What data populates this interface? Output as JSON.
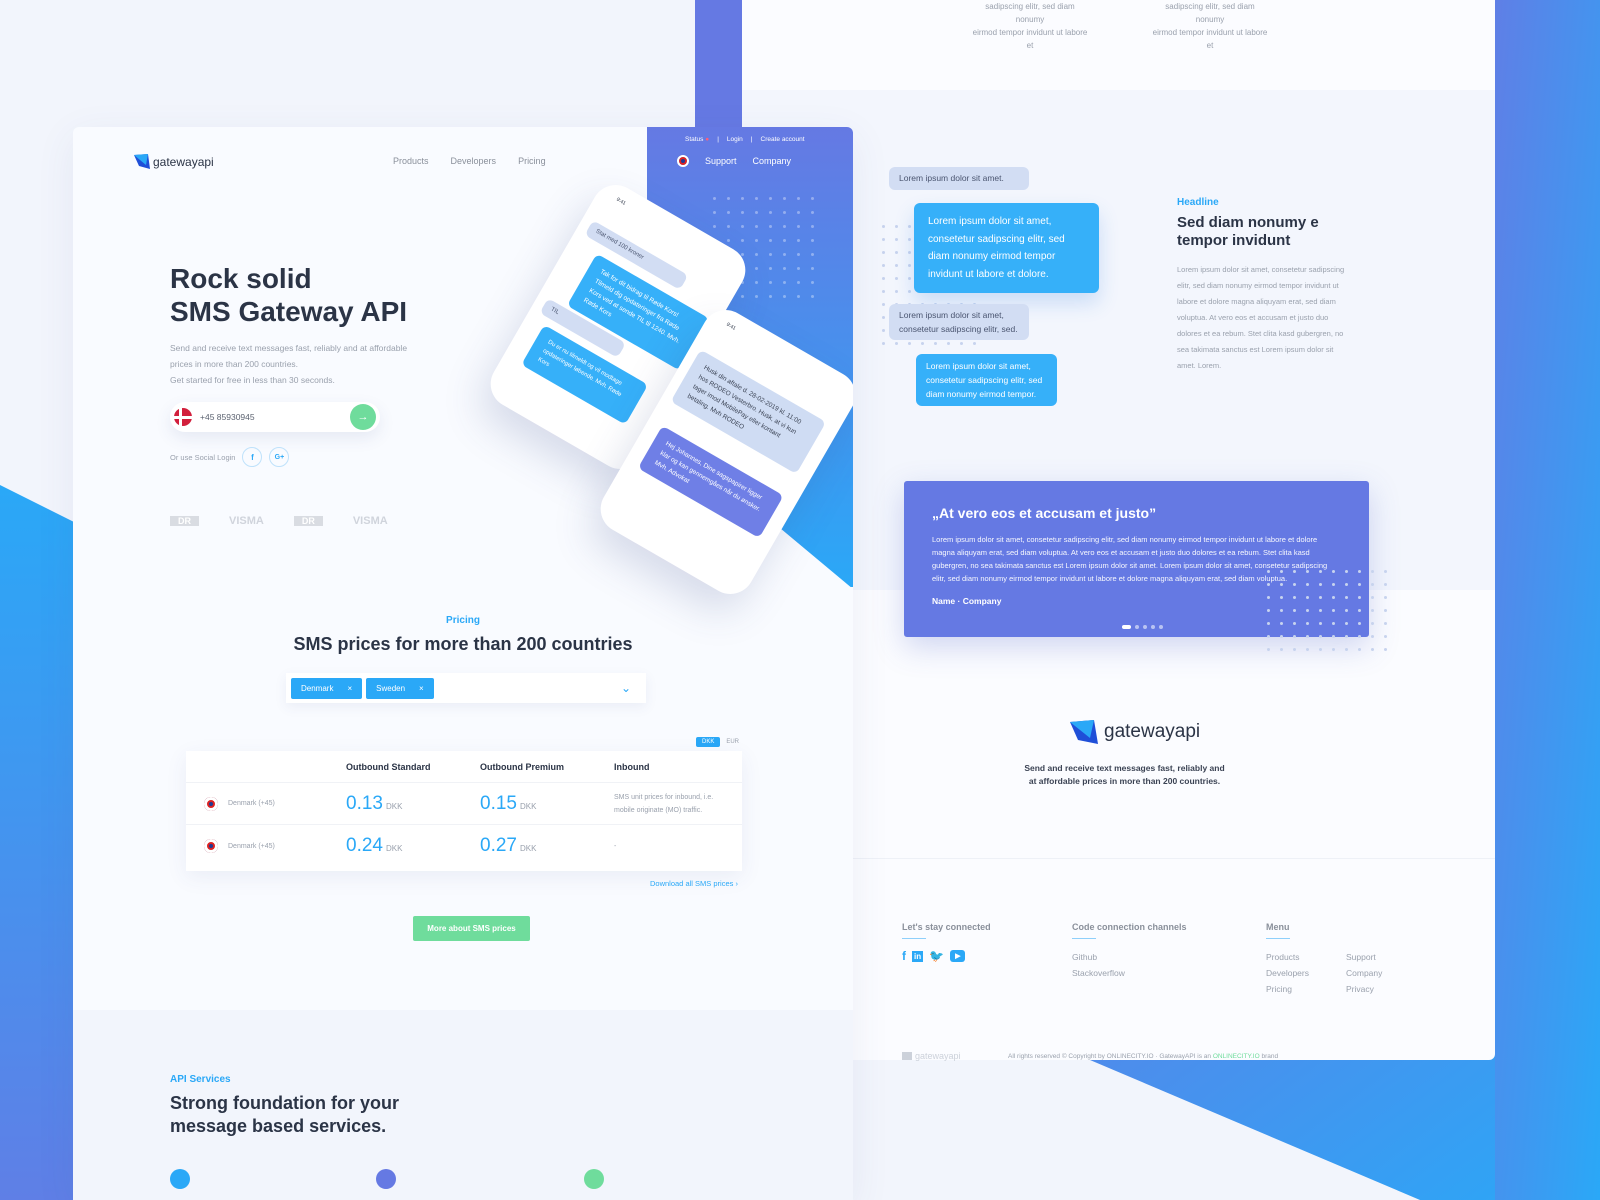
{
  "left": {
    "logo": "gatewayapi",
    "nav": [
      "Products",
      "Developers",
      "Pricing"
    ],
    "topbar": {
      "status": "Status",
      "login": "Login",
      "create": "Create account",
      "support": "Support",
      "company": "Company"
    },
    "hero": {
      "title1": "Rock solid",
      "title2": "SMS Gateway API",
      "desc1": "Send and receive text messages fast, reliably and at affordable",
      "desc2": "prices in more than 200 countries.",
      "desc3": "Get started for free in less than 30 seconds.",
      "phone_value": "+45 85930945",
      "social": "Or use Social Login",
      "fb": "f",
      "gplus": "G+"
    },
    "clients": [
      "DR",
      "VISMA",
      "DR",
      "VISMA"
    ],
    "phones": {
      "time": "9:41",
      "msg1": "Stat med 100 kroner",
      "msg2": "Tak for dit bidrag til Røde Kors! Tilmeld dig opdateringer fra Røde Kors ved at sende TIL til 1240. Mvh. Røde Kors",
      "msg3": "TIL",
      "msg4": "Du er nu tilmeldt og vil modtage opdateringer løbende. Mvh. Røde Kors",
      "msg5": "Husk din aftale d. 28-02-2019 kl. 11:00 hos RODEO Vesterbro. Husk, at vi kun tager imod MobilePay eller kontant betaling. Mvh RODEO",
      "msg6": "Hej Johannes, Dine sagspapirer ligger klar og kan gennemgåes når du ønsker. Mvh. Advokat"
    },
    "pricing": {
      "eyebrow": "Pricing",
      "title": "SMS prices for more than 200 countries",
      "tags": [
        "Denmark",
        "Sweden"
      ],
      "currencies": [
        "DKK",
        "EUR"
      ],
      "selected_currency": "DKK",
      "headers": [
        "Outbound Standard",
        "Outbound Premium",
        "Inbound"
      ],
      "rows": [
        {
          "country": "Denmark (+45)",
          "std": "0.13",
          "prem": "0.15",
          "unit": "DKK",
          "inbound": "SMS unit prices for inbound, i.e. mobile originate (MO) traffic."
        },
        {
          "country": "Denmark (+45)",
          "std": "0.24",
          "prem": "0.27",
          "unit": "DKK",
          "inbound": "-"
        }
      ],
      "download": "Download all SMS prices",
      "more": "More about SMS prices"
    },
    "api": {
      "eyebrow": "API Services",
      "title1": "Strong foundation for your",
      "title2": "message based services."
    }
  },
  "right": {
    "top_text": [
      "sadipscing elitr, sed diam nonumy",
      "eirmod tempor invidunt ut labore et"
    ],
    "bubbles": [
      "Lorem ipsum dolor sit amet.",
      "Lorem ipsum dolor sit amet, consetetur sadipscing elitr, sed diam nonumy eirmod tempor invidunt ut labore et dolore.",
      "Lorem ipsum dolor sit amet, consetetur sadipscing elitr, sed.",
      "Lorem ipsum dolor sit amet, consetetur sadipscing elitr, sed diam nonumy eirmod tempor."
    ],
    "feature": {
      "eyebrow": "Headline",
      "title": "Sed diam nonumy e tempor invidunt",
      "body": "Lorem ipsum dolor sit amet, consetetur sadipscing elitr, sed diam nonumy eirmod tempor invidunt ut labore et dolore magna aliquyam erat, sed diam voluptua. At vero eos et accusam et justo duo dolores et ea rebum. Stet clita kasd gubergren, no sea takimata sanctus est Lorem ipsum dolor sit amet. Lorem."
    },
    "quote": {
      "title": "„At vero eos et accusam et justo”",
      "body": "Lorem ipsum dolor sit amet, consetetur sadipscing elitr, sed diam nonumy eirmod tempor invidunt ut labore et dolore magna aliquyam erat, sed diam voluptua. At vero eos et accusam et justo duo dolores et ea rebum. Stet clita kasd gubergren, no sea takimata sanctus est Lorem ipsum dolor sit amet. Lorem ipsum dolor sit amet, consetetur sadipscing elitr, sed diam nonumy eirmod tempor invidunt ut labore et dolore magna aliquyam erat, sed diam voluptua.",
      "author": "Name  ·  Company",
      "slides": 5,
      "active_slide": 1
    },
    "brand": {
      "logo": "gatewayapi",
      "tag1": "Send and receive text messages fast, reliably and",
      "tag2": "at affordable prices in more than 200 countries."
    },
    "footer": {
      "connect": "Let's stay connected",
      "code": "Code connection channels",
      "code_links": [
        "Github",
        "Stackoverflow"
      ],
      "menu": "Menu",
      "menu_links": [
        "Products",
        "Developers",
        "Pricing",
        "Support",
        "Company",
        "Privacy"
      ],
      "logo": "gatewayapi",
      "copy1": "All rights reserved © Copyright by ONLINECITY.IO · GatewayAPI is an ",
      "copy_brand": "ONLINECITY.IO",
      "copy2": " brand"
    }
  },
  "colors": {
    "accent": "#2aa8f7",
    "indigo": "#6579e3",
    "green": "#6fdc9c",
    "dark": "#2b3446"
  }
}
